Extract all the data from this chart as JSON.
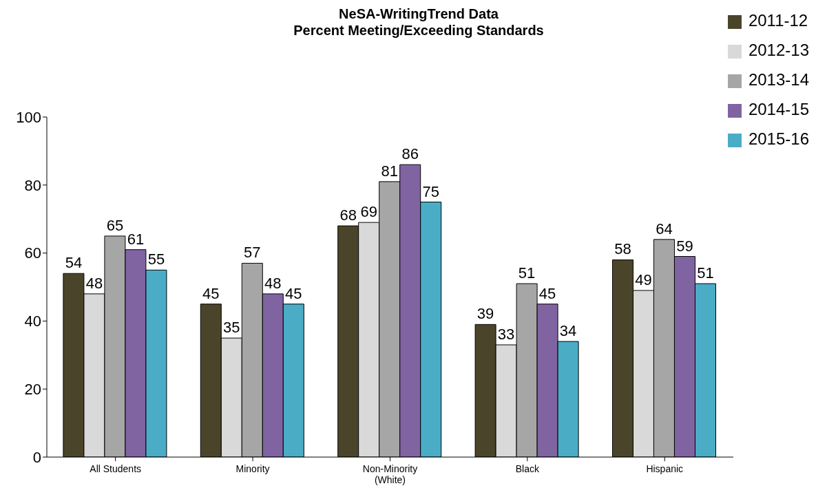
{
  "chart_data": {
    "type": "bar",
    "title": "NeSA-WritingTrend Data\nPercent Meeting/Exceeding Standards",
    "categories": [
      "All Students",
      "Minority",
      "Non-Minority\n(White)",
      "Black",
      "Hispanic"
    ],
    "series": [
      {
        "name": "2011-12",
        "color": "#4a452a",
        "values": [
          54,
          45,
          68,
          39,
          58
        ]
      },
      {
        "name": "2012-13",
        "color": "#d9d9d9",
        "values": [
          48,
          35,
          69,
          33,
          49
        ]
      },
      {
        "name": "2013-14",
        "color": "#a6a6a6",
        "values": [
          65,
          57,
          81,
          51,
          64
        ]
      },
      {
        "name": "2014-15",
        "color": "#8064a2",
        "values": [
          61,
          48,
          86,
          45,
          59
        ]
      },
      {
        "name": "2015-16",
        "color": "#4bacc6",
        "values": [
          55,
          45,
          75,
          34,
          51
        ]
      }
    ],
    "ylim": [
      0,
      100
    ],
    "yticks": [
      0,
      20,
      40,
      60,
      80,
      100
    ],
    "grid": false,
    "legend": "top right",
    "data_labels": true
  }
}
